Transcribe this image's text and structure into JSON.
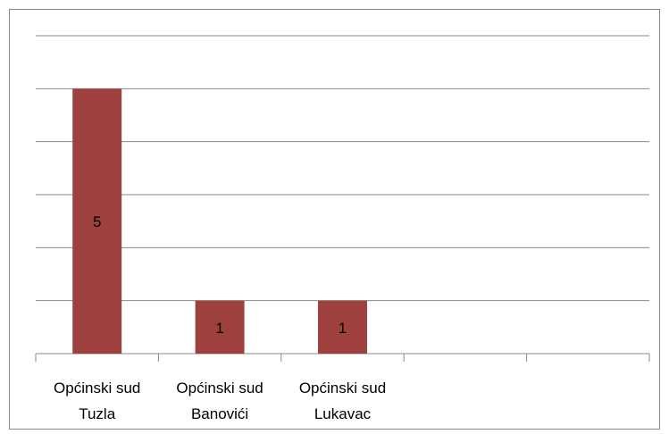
{
  "chart_data": {
    "type": "bar",
    "categories": [
      "Općinski sud Tuzla",
      "Općinski sud Banovići",
      "Općinski sud Lukavac",
      null,
      null
    ],
    "values": [
      5,
      1,
      1,
      null,
      null
    ],
    "color": "#9e413e",
    "ylim": [
      0,
      6
    ],
    "yticks": [
      0,
      1,
      2,
      3,
      4,
      5,
      6
    ],
    "grid": true
  }
}
